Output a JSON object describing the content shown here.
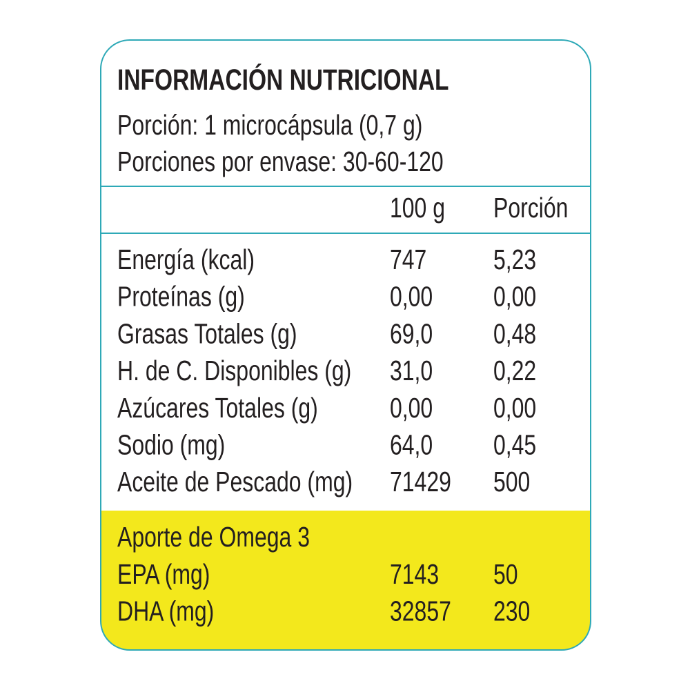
{
  "header": {
    "title": "INFORMACIÓN NUTRICIONAL",
    "serving": "Porción: 1 microcápsula (0,7 g)",
    "servings_per_container": "Porciones por envase: 30-60-120"
  },
  "table": {
    "columns": [
      "100 g",
      "Porción"
    ],
    "rows": [
      [
        "Energía (kcal)",
        "747",
        "5,23"
      ],
      [
        "Proteínas (g)",
        "0,00",
        "0,00"
      ],
      [
        "Grasas Totales (g)",
        "69,0",
        "0,48"
      ],
      [
        "H. de C. Disponibles (g)",
        "31,0",
        "0,22"
      ],
      [
        "Azúcares Totales (g)",
        "0,00",
        "0,00"
      ],
      [
        "Sodio (mg)",
        "64,0",
        "0,45"
      ],
      [
        "Aceite de Pescado (mg)",
        "71429",
        "500"
      ]
    ]
  },
  "omega": {
    "title": "Aporte de Omega 3",
    "rows": [
      [
        "EPA (mg)",
        "7143",
        "50"
      ],
      [
        "DHA (mg)",
        "32857",
        "230"
      ]
    ]
  }
}
